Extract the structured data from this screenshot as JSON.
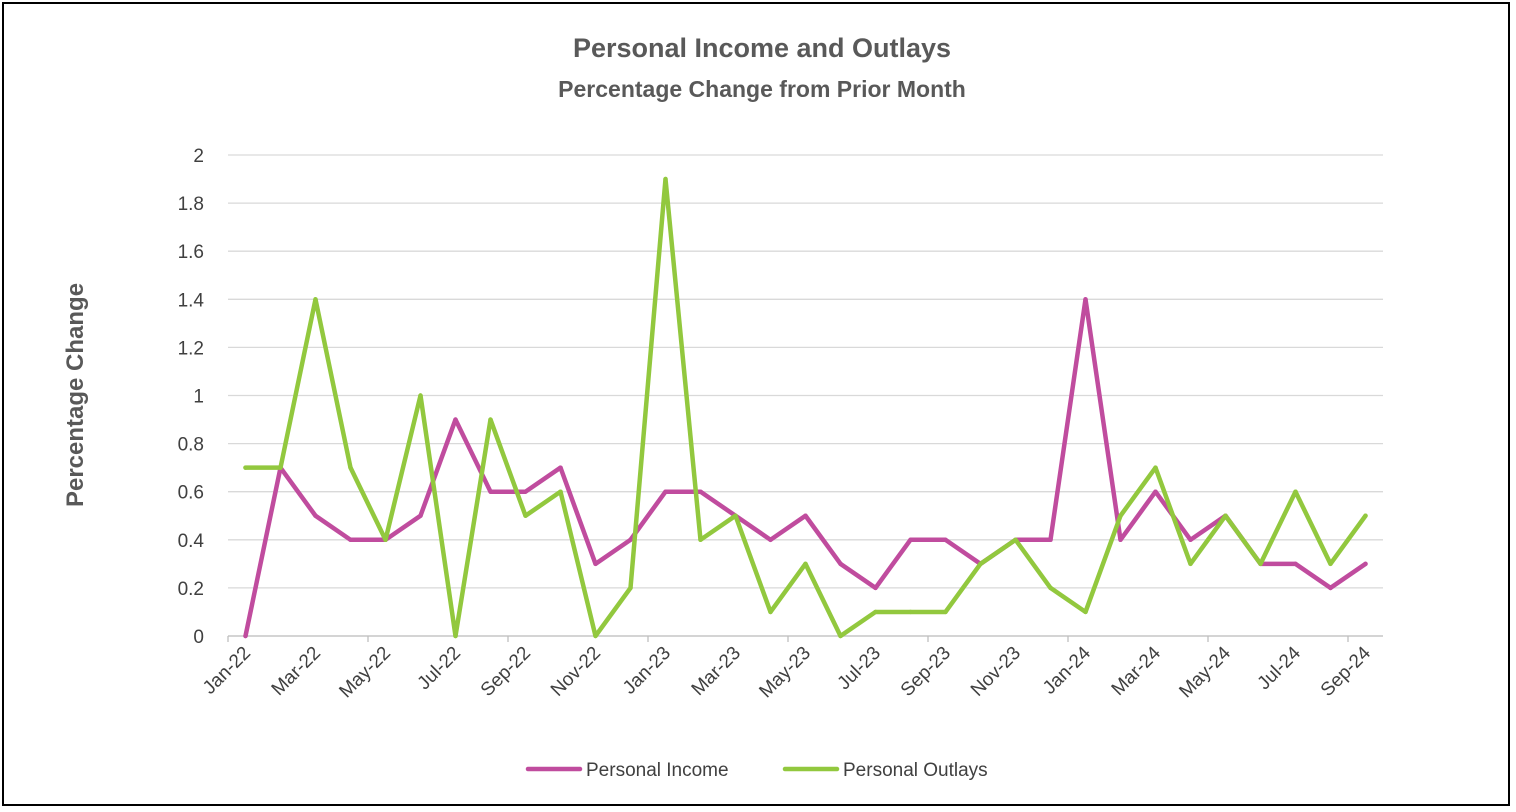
{
  "chart_data": {
    "type": "line",
    "title": "Personal Income and Outlays",
    "subtitle": "Percentage Change from Prior Month",
    "xlabel": "",
    "ylabel": "Percentage Change",
    "ylim": [
      0,
      2
    ],
    "yticks": [
      "0",
      "0.2",
      "0.4",
      "0.6",
      "0.8",
      "1",
      "1.2",
      "1.4",
      "1.6",
      "1.8",
      "2"
    ],
    "x": [
      "Jan-22",
      "Feb-22",
      "Mar-22",
      "Apr-22",
      "May-22",
      "Jun-22",
      "Jul-22",
      "Aug-22",
      "Sep-22",
      "Oct-22",
      "Nov-22",
      "Dec-22",
      "Jan-23",
      "Feb-23",
      "Mar-23",
      "Apr-23",
      "May-23",
      "Jun-23",
      "Jul-23",
      "Aug-23",
      "Sep-23",
      "Oct-23",
      "Nov-23",
      "Dec-23",
      "Jan-24",
      "Feb-24",
      "Mar-24",
      "Apr-24",
      "May-24",
      "Jun-24",
      "Jul-24",
      "Aug-24",
      "Sep-24"
    ],
    "xtick_labels": [
      "Jan-22",
      "Mar-22",
      "May-22",
      "Jul-22",
      "Sep-22",
      "Nov-22",
      "Jan-23",
      "Mar-23",
      "May-23",
      "Jul-23",
      "Sep-23",
      "Nov-23",
      "Jan-24",
      "Mar-24",
      "May-24",
      "Jul-24",
      "Sep-24"
    ],
    "grid": true,
    "legend_position": "bottom",
    "series": [
      {
        "name": "Personal Income",
        "color": "#C04C9E",
        "values": [
          0.0,
          0.7,
          0.5,
          0.4,
          0.4,
          0.5,
          0.9,
          0.6,
          0.6,
          0.7,
          0.3,
          0.4,
          0.6,
          0.6,
          0.5,
          0.4,
          0.5,
          0.3,
          0.2,
          0.4,
          0.4,
          0.3,
          0.4,
          0.4,
          1.4,
          0.4,
          0.6,
          0.4,
          0.5,
          0.3,
          0.3,
          0.2,
          0.3
        ]
      },
      {
        "name": "Personal Outlays",
        "color": "#92C83E",
        "values": [
          0.7,
          0.7,
          1.4,
          0.7,
          0.4,
          1.0,
          0.0,
          0.9,
          0.5,
          0.6,
          0.0,
          0.2,
          1.9,
          0.4,
          0.5,
          0.1,
          0.3,
          0.0,
          0.1,
          0.1,
          0.1,
          0.3,
          0.4,
          0.2,
          0.1,
          0.5,
          0.7,
          0.3,
          0.5,
          0.3,
          0.6,
          0.3,
          0.5
        ]
      }
    ]
  }
}
